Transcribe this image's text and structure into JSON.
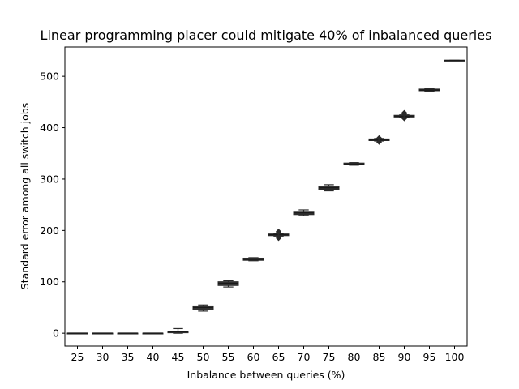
{
  "chart_data": {
    "type": "box",
    "title": "Linear programming placer could mitigate 40% of inbalanced queries",
    "xlabel": "Inbalance between queries (%)",
    "ylabel": "Standard error among all switch jobs",
    "categories": [
      "25",
      "30",
      "35",
      "40",
      "45",
      "50",
      "55",
      "60",
      "65",
      "70",
      "75",
      "80",
      "85",
      "90",
      "95",
      "100"
    ],
    "yticks": [
      0,
      100,
      200,
      300,
      400,
      500
    ],
    "ylim": [
      -25,
      557
    ],
    "grid": false,
    "legend": "none",
    "boxes": [
      {
        "category": "25",
        "q1": 0,
        "median": 0,
        "q3": 0,
        "whisker_low": 0,
        "whisker_high": 0,
        "fliers": []
      },
      {
        "category": "30",
        "q1": 0,
        "median": 0,
        "q3": 0,
        "whisker_low": 0,
        "whisker_high": 0,
        "fliers": []
      },
      {
        "category": "35",
        "q1": 0,
        "median": 0,
        "q3": 0,
        "whisker_low": 0,
        "whisker_high": 0,
        "fliers": []
      },
      {
        "category": "40",
        "q1": 0,
        "median": 0,
        "q3": 0,
        "whisker_low": 0,
        "whisker_high": 0,
        "fliers": []
      },
      {
        "category": "45",
        "q1": 1,
        "median": 3,
        "q3": 4,
        "whisker_low": 0,
        "whisker_high": 9,
        "fliers": []
      },
      {
        "category": "50",
        "q1": 46,
        "median": 50,
        "q3": 53,
        "whisker_low": 43,
        "whisker_high": 55,
        "fliers": []
      },
      {
        "category": "55",
        "q1": 93,
        "median": 97,
        "q3": 100,
        "whisker_low": 90,
        "whisker_high": 102,
        "fliers": []
      },
      {
        "category": "60",
        "q1": 142,
        "median": 144,
        "q3": 146,
        "whisker_low": 141,
        "whisker_high": 147,
        "fliers": []
      },
      {
        "category": "65",
        "q1": 190,
        "median": 192,
        "q3": 193,
        "whisker_low": 189,
        "whisker_high": 194,
        "fliers": [
          185,
          187,
          196,
          198
        ]
      },
      {
        "category": "70",
        "q1": 231,
        "median": 234,
        "q3": 237,
        "whisker_low": 229,
        "whisker_high": 240,
        "fliers": []
      },
      {
        "category": "75",
        "q1": 280,
        "median": 283,
        "q3": 286,
        "whisker_low": 277,
        "whisker_high": 289,
        "fliers": []
      },
      {
        "category": "80",
        "q1": 328,
        "median": 329,
        "q3": 331,
        "whisker_low": 327,
        "whisker_high": 332,
        "fliers": []
      },
      {
        "category": "85",
        "q1": 375,
        "median": 376,
        "q3": 378,
        "whisker_low": 374,
        "whisker_high": 379,
        "fliers": [
          372,
          380
        ]
      },
      {
        "category": "90",
        "q1": 421,
        "median": 422,
        "q3": 424,
        "whisker_low": 420,
        "whisker_high": 425,
        "fliers": [
          418,
          427,
          429
        ]
      },
      {
        "category": "95",
        "q1": 472,
        "median": 473,
        "q3": 475,
        "whisker_low": 471,
        "whisker_high": 476,
        "fliers": []
      },
      {
        "category": "100",
        "q1": 531,
        "median": 531,
        "q3": 531,
        "whisker_low": 531,
        "whisker_high": 531,
        "fliers": []
      }
    ],
    "colors": {
      "box": "#3a3a3a",
      "line": "#2b2b2b"
    }
  }
}
